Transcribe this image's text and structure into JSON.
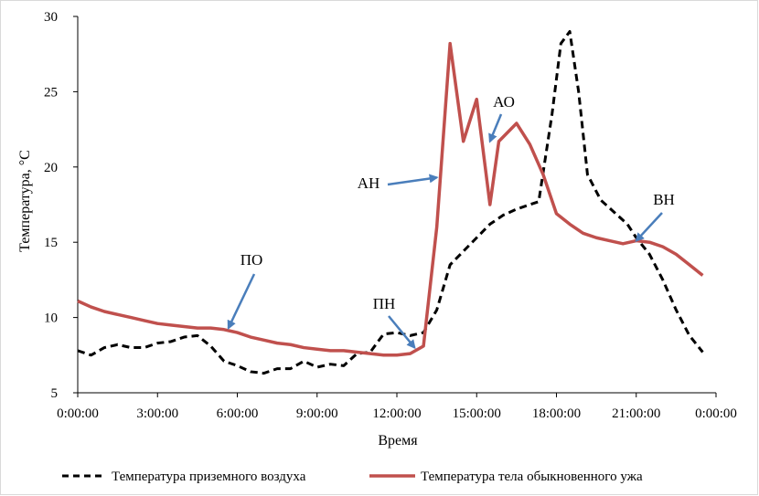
{
  "chart_data": {
    "type": "line",
    "xlabel": "Время",
    "ylabel": "Температура, °C",
    "ylim": [
      5,
      30
    ],
    "xlim": [
      "0:00:00",
      "24:00:00"
    ],
    "y_ticks": [
      5,
      10,
      15,
      20,
      25,
      30
    ],
    "x_ticks": [
      "0:00:00",
      "3:00:00",
      "6:00:00",
      "9:00:00",
      "12:00:00",
      "15:00:00",
      "18:00:00",
      "21:00:00",
      "0:00:00"
    ],
    "grid": false,
    "legend_position": "bottom",
    "series": [
      {
        "name": "Температура приземного воздуха",
        "color": "#000000",
        "style": "dashed",
        "points": [
          [
            "0:00",
            7.8
          ],
          [
            "0:30",
            7.5
          ],
          [
            "1:00",
            8.0
          ],
          [
            "1:30",
            8.2
          ],
          [
            "2:00",
            8.0
          ],
          [
            "2:30",
            8.0
          ],
          [
            "3:00",
            8.3
          ],
          [
            "3:30",
            8.4
          ],
          [
            "4:00",
            8.7
          ],
          [
            "4:30",
            8.8
          ],
          [
            "5:00",
            8.1
          ],
          [
            "5:30",
            7.1
          ],
          [
            "6:00",
            6.8
          ],
          [
            "6:30",
            6.4
          ],
          [
            "7:00",
            6.3
          ],
          [
            "7:30",
            6.6
          ],
          [
            "8:00",
            6.6
          ],
          [
            "8:30",
            7.1
          ],
          [
            "9:00",
            6.7
          ],
          [
            "9:30",
            6.9
          ],
          [
            "10:00",
            6.8
          ],
          [
            "10:30",
            7.6
          ],
          [
            "11:00",
            7.7
          ],
          [
            "11:30",
            8.9
          ],
          [
            "12:00",
            9.0
          ],
          [
            "12:30",
            8.8
          ],
          [
            "13:00",
            9.0
          ],
          [
            "13:30",
            10.5
          ],
          [
            "14:00",
            13.5
          ],
          [
            "14:30",
            14.4
          ],
          [
            "15:00",
            15.3
          ],
          [
            "15:30",
            16.2
          ],
          [
            "16:00",
            16.8
          ],
          [
            "16:30",
            17.2
          ],
          [
            "17:00",
            17.5
          ],
          [
            "17:20",
            17.7
          ],
          [
            "17:50",
            23.5
          ],
          [
            "18:10",
            28.2
          ],
          [
            "18:30",
            29.0
          ],
          [
            "18:50",
            25.0
          ],
          [
            "19:10",
            19.5
          ],
          [
            "19:40",
            17.8
          ],
          [
            "20:10",
            17.0
          ],
          [
            "20:40",
            16.2
          ],
          [
            "21:00",
            15.3
          ],
          [
            "21:30",
            14.2
          ],
          [
            "22:00",
            12.5
          ],
          [
            "22:30",
            10.5
          ],
          [
            "23:00",
            8.8
          ],
          [
            "23:30",
            7.7
          ]
        ]
      },
      {
        "name": "Температура тела обыкновенного ужа",
        "color": "#c0504d",
        "style": "solid",
        "points": [
          [
            "0:00",
            11.1
          ],
          [
            "0:30",
            10.7
          ],
          [
            "1:00",
            10.4
          ],
          [
            "1:30",
            10.2
          ],
          [
            "2:00",
            10.0
          ],
          [
            "2:30",
            9.8
          ],
          [
            "3:00",
            9.6
          ],
          [
            "3:30",
            9.5
          ],
          [
            "4:00",
            9.4
          ],
          [
            "4:30",
            9.3
          ],
          [
            "5:00",
            9.3
          ],
          [
            "5:30",
            9.2
          ],
          [
            "6:00",
            9.0
          ],
          [
            "6:30",
            8.7
          ],
          [
            "7:00",
            8.5
          ],
          [
            "7:30",
            8.3
          ],
          [
            "8:00",
            8.2
          ],
          [
            "8:30",
            8.0
          ],
          [
            "9:00",
            7.9
          ],
          [
            "9:30",
            7.8
          ],
          [
            "10:00",
            7.8
          ],
          [
            "10:30",
            7.7
          ],
          [
            "11:00",
            7.6
          ],
          [
            "11:30",
            7.5
          ],
          [
            "12:00",
            7.5
          ],
          [
            "12:30",
            7.6
          ],
          [
            "13:00",
            8.1
          ],
          [
            "13:30",
            16.0
          ],
          [
            "14:00",
            28.2
          ],
          [
            "14:30",
            21.7
          ],
          [
            "15:00",
            24.5
          ],
          [
            "15:30",
            17.5
          ],
          [
            "15:50",
            21.7
          ],
          [
            "16:30",
            22.9
          ],
          [
            "17:00",
            21.5
          ],
          [
            "17:30",
            19.5
          ],
          [
            "18:00",
            16.9
          ],
          [
            "18:30",
            16.2
          ],
          [
            "19:00",
            15.6
          ],
          [
            "19:30",
            15.3
          ],
          [
            "20:00",
            15.1
          ],
          [
            "20:30",
            14.9
          ],
          [
            "21:00",
            15.1
          ],
          [
            "21:30",
            15.0
          ],
          [
            "22:00",
            14.7
          ],
          [
            "22:30",
            14.2
          ],
          [
            "23:00",
            13.5
          ],
          [
            "23:30",
            12.8
          ]
        ]
      }
    ],
    "annotations": [
      {
        "label": "ПО",
        "target": [
          "5:40",
          9.3
        ]
      },
      {
        "label": "ПН",
        "target": [
          "12:40",
          8.0
        ]
      },
      {
        "label": "АН",
        "target": [
          "13:30",
          19.3
        ]
      },
      {
        "label": "АО",
        "target": [
          "15:30",
          21.7
        ]
      },
      {
        "label": "ВН",
        "target": [
          "21:00",
          15.1
        ]
      }
    ]
  }
}
